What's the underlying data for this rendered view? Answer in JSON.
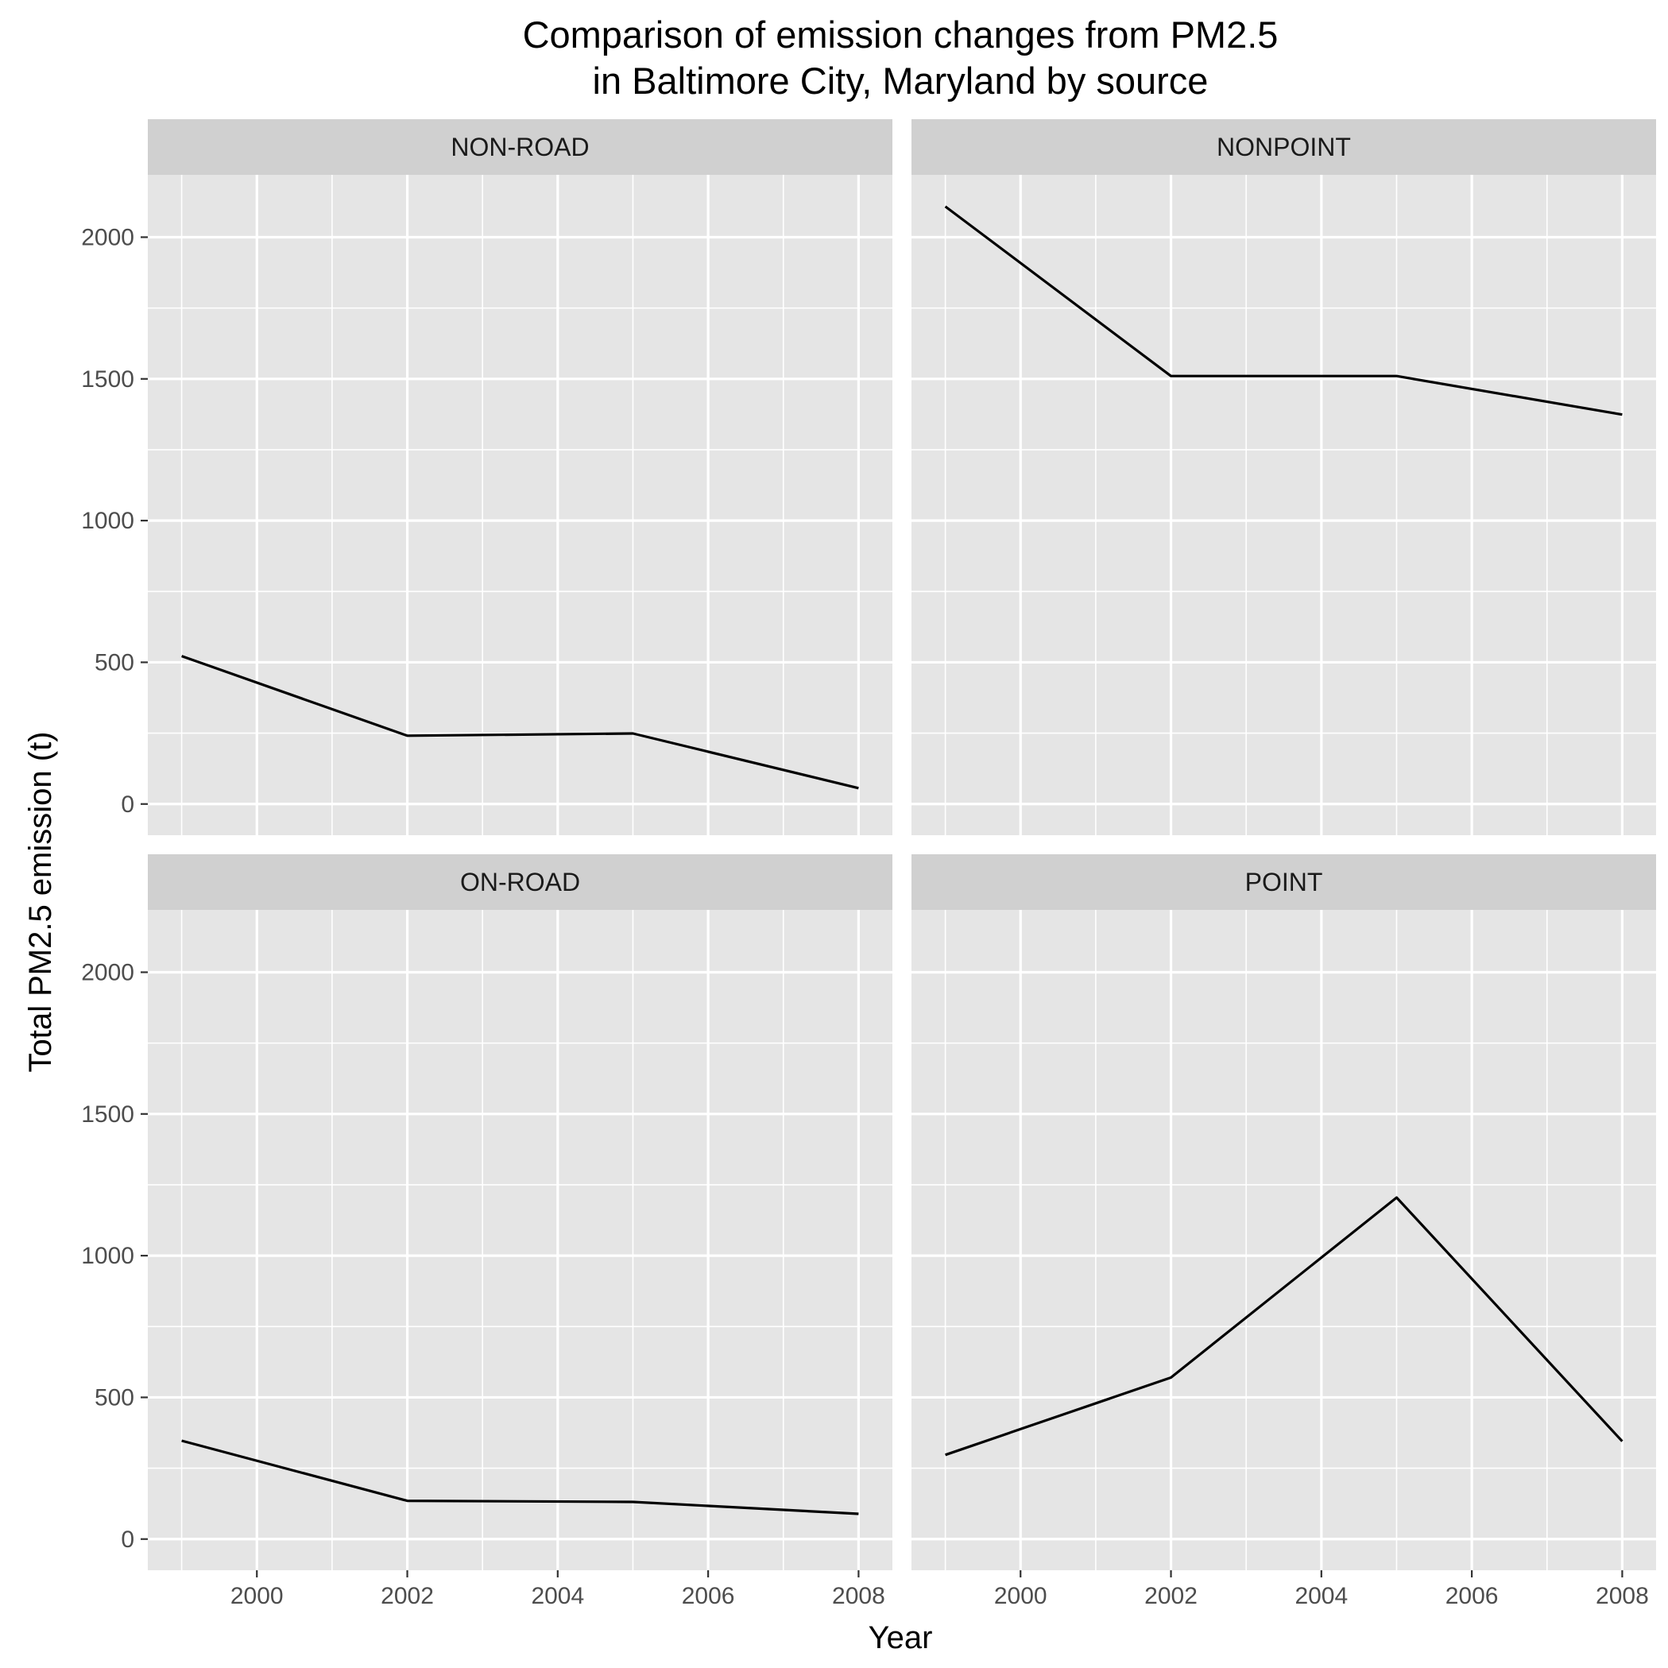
{
  "chart_data": {
    "type": "line",
    "title_lines": [
      "Comparison of emission changes from PM2.5",
      "in Baltimore City, Maryland by source"
    ],
    "xlabel": "Year",
    "ylabel": "Total PM2.5 emission (t)",
    "xlim": [
      1998.55,
      2008.45
    ],
    "ylim": [
      -110,
      2220
    ],
    "x_ticks": [
      2000,
      2002,
      2004,
      2006,
      2008
    ],
    "x_tick_labels": [
      "2000",
      "2002",
      "2004",
      "2006",
      "2008"
    ],
    "y_ticks": [
      0,
      500,
      1000,
      1500,
      2000
    ],
    "y_tick_labels": [
      "0",
      "500",
      "1000",
      "1500",
      "2000"
    ],
    "grid": true,
    "line_color": "#000000",
    "panel_background": "#e5e5e5",
    "strip_background": "#d0d0d0",
    "facets": [
      {
        "name": "NON-ROAD",
        "x": [
          1999,
          2002,
          2005,
          2008
        ],
        "values": [
          522,
          241,
          249,
          56
        ]
      },
      {
        "name": "NONPOINT",
        "x": [
          1999,
          2002,
          2005,
          2008
        ],
        "values": [
          2108,
          1510,
          1510,
          1374
        ]
      },
      {
        "name": "ON-ROAD",
        "x": [
          1999,
          2002,
          2005,
          2008
        ],
        "values": [
          347,
          135,
          131,
          89
        ]
      },
      {
        "name": "POINT",
        "x": [
          1999,
          2002,
          2005,
          2008
        ],
        "values": [
          297,
          570,
          1205,
          345
        ]
      }
    ]
  }
}
